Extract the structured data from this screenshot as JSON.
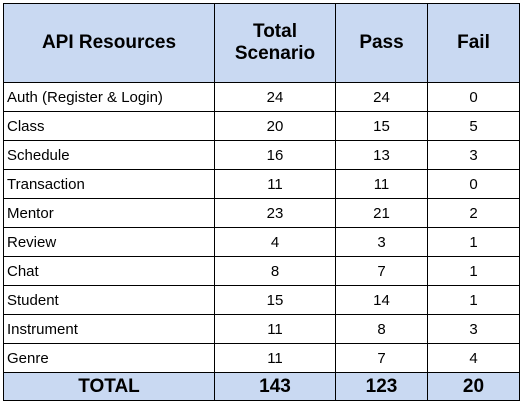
{
  "colors": {
    "header_background": "#c9d9f2",
    "row_background": "#ffffff",
    "total_background": "#c9d9f2",
    "border": "#000000"
  },
  "table": {
    "headers": [
      "API Resources",
      "Total Scenario",
      "Pass",
      "Fail"
    ],
    "rows": [
      [
        "Auth (Register & Login)",
        "24",
        "24",
        "0"
      ],
      [
        "Class",
        "20",
        "15",
        "5"
      ],
      [
        "Schedule",
        "16",
        "13",
        "3"
      ],
      [
        "Transaction",
        "11",
        "11",
        "0"
      ],
      [
        "Mentor",
        "23",
        "21",
        "2"
      ],
      [
        "Review",
        "4",
        "3",
        "1"
      ],
      [
        "Chat",
        "8",
        "7",
        "1"
      ],
      [
        "Student",
        "15",
        "14",
        "1"
      ],
      [
        "Instrument",
        "11",
        "8",
        "3"
      ],
      [
        "Genre",
        "11",
        "7",
        "4"
      ]
    ],
    "total": [
      "TOTAL",
      "143",
      "123",
      "20"
    ]
  }
}
